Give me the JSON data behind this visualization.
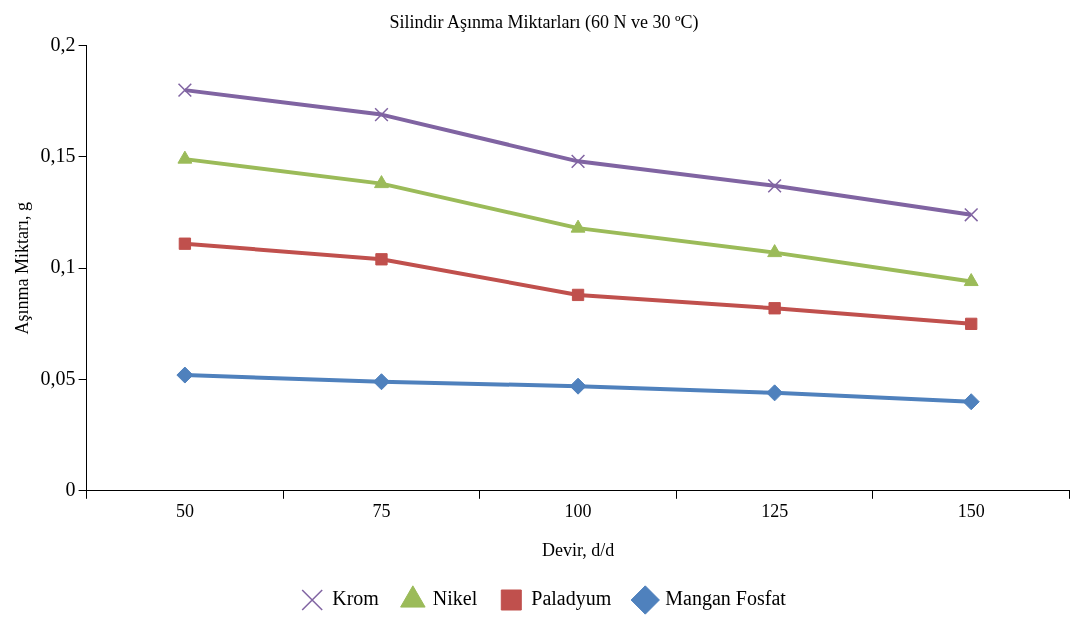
{
  "chart_data": {
    "type": "line",
    "title": "Silindir Aşınma Miktarları (60 N ve 30 ºC)",
    "xlabel": "Devir, d/d",
    "ylabel": "Aşınma Miktarı, g",
    "categories": [
      "50",
      "75",
      "100",
      "125",
      "150"
    ],
    "series": [
      {
        "name": "Krom",
        "color": "#8064a2",
        "marker": "cross",
        "values": [
          0.18,
          0.169,
          0.148,
          0.137,
          0.124
        ]
      },
      {
        "name": "Nikel",
        "color": "#9bbb59",
        "marker": "triangle",
        "values": [
          0.149,
          0.138,
          0.118,
          0.107,
          0.094
        ]
      },
      {
        "name": "Paladyum",
        "color": "#c0504d",
        "marker": "square",
        "values": [
          0.111,
          0.104,
          0.088,
          0.082,
          0.075
        ]
      },
      {
        "name": "Mangan Fosfat",
        "color": "#4f81bd",
        "marker": "diamond",
        "values": [
          0.052,
          0.049,
          0.047,
          0.044,
          0.04
        ]
      }
    ],
    "ylim": [
      0,
      0.2
    ],
    "yticks": [
      {
        "value": 0,
        "label": "0"
      },
      {
        "value": 0.05,
        "label": "0,05"
      },
      {
        "value": 0.1,
        "label": "0,1"
      },
      {
        "value": 0.15,
        "label": "0,15"
      },
      {
        "value": 0.2,
        "label": "0,2"
      }
    ],
    "grid": false,
    "legend": "bottom",
    "line_style": "solid"
  }
}
